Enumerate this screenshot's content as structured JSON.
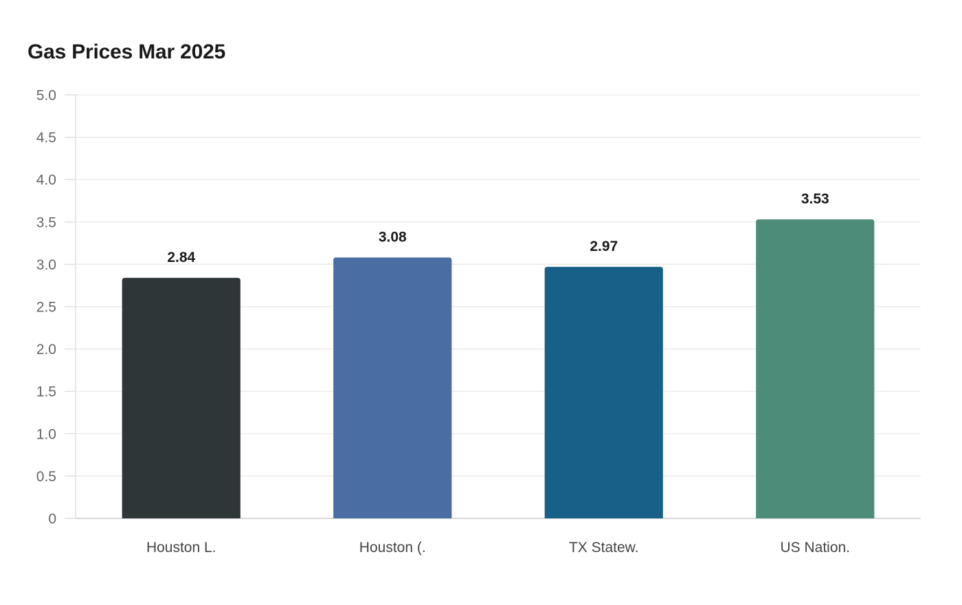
{
  "chart_data": {
    "type": "bar",
    "title": "Gas Prices Mar 2025",
    "categories": [
      "Houston L.",
      "Houston (.",
      "TX Statew.",
      "US Nation."
    ],
    "values": [
      2.84,
      3.08,
      2.97,
      3.53
    ],
    "value_labels": [
      "2.84",
      "3.08",
      "2.97",
      "3.53"
    ],
    "colors": [
      "#2e3638",
      "#4a6ea3",
      "#186087",
      "#4e8c7a"
    ],
    "xlabel": "",
    "ylabel": "",
    "ylim": [
      0,
      5
    ],
    "yticks": [
      0,
      0.5,
      1,
      1.5,
      2,
      2.5,
      3,
      3.5,
      4,
      4.5,
      5
    ],
    "ytick_labels": [
      "0",
      "0.5",
      "1.0",
      "1.5",
      "2.0",
      "2.5",
      "3.0",
      "3.5",
      "4.0",
      "4.5",
      "5.0"
    ],
    "grid": true,
    "legend": "none"
  }
}
